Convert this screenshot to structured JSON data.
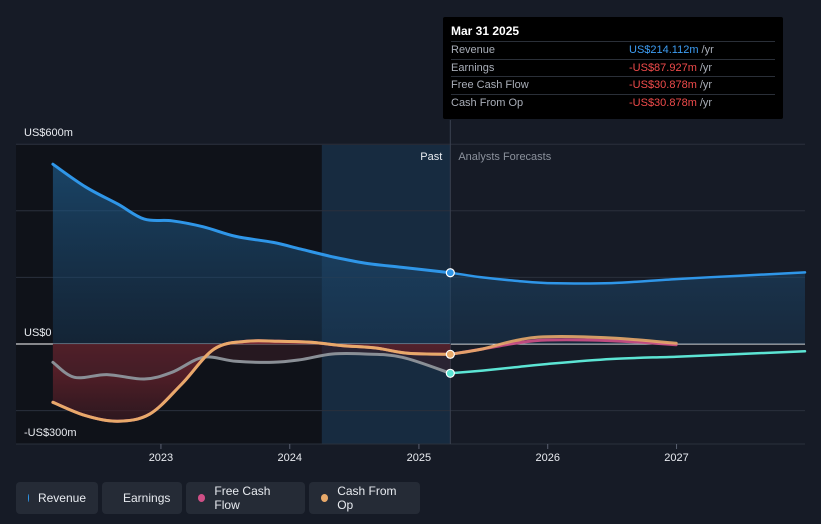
{
  "chart_data": {
    "type": "line",
    "y_axis": {
      "top_label": "US$600m",
      "zero_label": "US$0",
      "bottom_label": "-US$300m",
      "ylim": [
        -300,
        600
      ],
      "unit": "US$m"
    },
    "x_ticks": [
      "2023",
      "2024",
      "2025",
      "2026",
      "2027"
    ],
    "xlim": [
      "2022-02-15",
      "2027-12-31"
    ],
    "regions": {
      "past_label": "Past",
      "forecast_label": "Analysts Forecasts",
      "past_highlight_start": "2024-04-01",
      "divider_date": "2025-03-31"
    },
    "series": [
      {
        "name": "Revenue",
        "color": "#2f96e8",
        "past": [
          [
            "2022-03-01",
            540
          ],
          [
            "2022-06-01",
            472
          ],
          [
            "2022-09-01",
            420
          ],
          [
            "2022-11-15",
            375
          ],
          [
            "2023-02-01",
            370
          ],
          [
            "2023-05-01",
            352
          ],
          [
            "2023-08-01",
            323
          ],
          [
            "2023-11-15",
            305
          ],
          [
            "2024-02-01",
            285
          ],
          [
            "2024-05-01",
            262
          ],
          [
            "2024-08-01",
            243
          ],
          [
            "2024-11-15",
            230
          ],
          [
            "2025-03-31",
            214
          ]
        ],
        "forecast": [
          [
            "2025-03-31",
            214
          ],
          [
            "2025-06-30",
            200
          ],
          [
            "2025-09-30",
            190
          ],
          [
            "2025-12-31",
            183
          ],
          [
            "2026-06-30",
            183
          ],
          [
            "2026-12-31",
            195
          ],
          [
            "2027-06-30",
            205
          ],
          [
            "2027-12-31",
            215
          ]
        ]
      },
      {
        "name": "Earnings",
        "color": "#5ce5d4",
        "past": [
          [
            "2022-03-01",
            -55
          ],
          [
            "2022-05-01",
            -100
          ],
          [
            "2022-08-01",
            -92
          ],
          [
            "2022-11-15",
            -105
          ],
          [
            "2023-02-01",
            -85
          ],
          [
            "2023-05-01",
            -40
          ],
          [
            "2023-08-01",
            -52
          ],
          [
            "2023-11-15",
            -55
          ],
          [
            "2024-02-01",
            -47
          ],
          [
            "2024-05-01",
            -30
          ],
          [
            "2024-08-01",
            -30
          ],
          [
            "2024-11-15",
            -40
          ],
          [
            "2025-03-31",
            -88
          ]
        ],
        "forecast": [
          [
            "2025-03-31",
            -88
          ],
          [
            "2025-06-30",
            -80
          ],
          [
            "2025-09-30",
            -70
          ],
          [
            "2025-12-31",
            -60
          ],
          [
            "2026-06-30",
            -45
          ],
          [
            "2026-12-31",
            -38
          ],
          [
            "2027-06-30",
            -30
          ],
          [
            "2027-12-31",
            -22
          ]
        ]
      },
      {
        "name": "Free Cash Flow",
        "color": "#cf4f86",
        "past": [
          [
            "2022-03-01",
            -175
          ],
          [
            "2022-06-01",
            -215
          ],
          [
            "2022-09-01",
            -232
          ],
          [
            "2022-12-01",
            -210
          ],
          [
            "2023-03-01",
            -120
          ],
          [
            "2023-06-01",
            -15
          ],
          [
            "2023-09-01",
            8
          ],
          [
            "2023-12-01",
            8
          ],
          [
            "2024-03-01",
            5
          ],
          [
            "2024-06-01",
            -5
          ],
          [
            "2024-09-01",
            -12
          ],
          [
            "2024-12-01",
            -28
          ],
          [
            "2025-03-31",
            -31
          ]
        ],
        "forecast": [
          [
            "2025-03-31",
            -31
          ],
          [
            "2025-06-30",
            -15
          ],
          [
            "2025-09-30",
            2
          ],
          [
            "2025-12-31",
            12
          ],
          [
            "2026-06-30",
            10
          ],
          [
            "2026-12-31",
            -2
          ]
        ]
      },
      {
        "name": "Cash From Op",
        "color": "#e8a96a",
        "past": [
          [
            "2022-03-01",
            -175
          ],
          [
            "2022-06-01",
            -215
          ],
          [
            "2022-09-01",
            -232
          ],
          [
            "2022-12-01",
            -210
          ],
          [
            "2023-03-01",
            -120
          ],
          [
            "2023-06-01",
            -15
          ],
          [
            "2023-09-01",
            8
          ],
          [
            "2023-12-01",
            8
          ],
          [
            "2024-03-01",
            5
          ],
          [
            "2024-06-01",
            -5
          ],
          [
            "2024-09-01",
            -12
          ],
          [
            "2024-12-01",
            -28
          ],
          [
            "2025-03-31",
            -31
          ]
        ],
        "forecast": [
          [
            "2025-03-31",
            -31
          ],
          [
            "2025-06-30",
            -15
          ],
          [
            "2025-09-30",
            10
          ],
          [
            "2025-12-31",
            22
          ],
          [
            "2026-06-30",
            18
          ],
          [
            "2026-12-31",
            2
          ]
        ]
      }
    ]
  },
  "tooltip": {
    "date": "Mar 31 2025",
    "rows": [
      {
        "name": "Revenue",
        "value": "US$214.112m",
        "unit": "/yr",
        "color": "#3d9df3"
      },
      {
        "name": "Earnings",
        "value": "-US$87.927m",
        "unit": "/yr",
        "color": "#f04b4b"
      },
      {
        "name": "Free Cash Flow",
        "value": "-US$30.878m",
        "unit": "/yr",
        "color": "#f04b4b"
      },
      {
        "name": "Cash From Op",
        "value": "-US$30.878m",
        "unit": "/yr",
        "color": "#f04b4b"
      }
    ]
  },
  "legend": [
    {
      "label": "Revenue",
      "color": "#2f96e8"
    },
    {
      "label": "Earnings",
      "color": "#5ce5d4"
    },
    {
      "label": "Free Cash Flow",
      "color": "#cf4f86"
    },
    {
      "label": "Cash From Op",
      "color": "#e8a96a"
    }
  ]
}
